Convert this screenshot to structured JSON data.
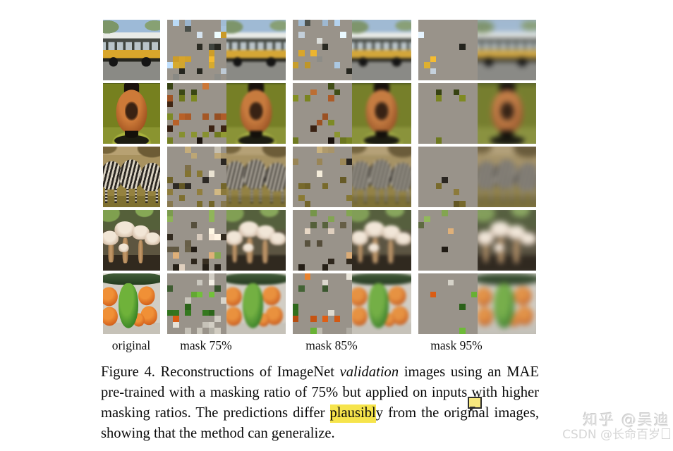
{
  "figure": {
    "columns": [
      {
        "label": "original",
        "mask_pct": 0
      },
      {
        "label": "mask 75%",
        "mask_pct": 75
      },
      {
        "label": "mask 85%",
        "mask_pct": 85
      },
      {
        "label": "mask 95%",
        "mask_pct": 95
      }
    ],
    "rows": [
      {
        "subject": "school-bus",
        "palette": [
          "#a8c4de",
          "#cfdce8",
          "#e9ebe7",
          "#474b45",
          "#d9a62b",
          "#caa02c",
          "#26261f",
          "#8a8a85"
        ]
      },
      {
        "subject": "vase",
        "palette": [
          "#3c4814",
          "#76801f",
          "#1a120c",
          "#c07034",
          "#a05424",
          "#3a2212",
          "#8a9430",
          "#6d7820"
        ]
      },
      {
        "subject": "zebras",
        "palette": [
          "#b7a172",
          "#a8925f",
          "#8a7a50",
          "#d9d2c2",
          "#2b2722",
          "#95823f",
          "#7f7030",
          "#6d6028"
        ]
      },
      {
        "subject": "mushrooms",
        "palette": [
          "#7fa04f",
          "#55603a",
          "#e8d8c6",
          "#f0e2d2",
          "#5d5540",
          "#c49a6a",
          "#31291e",
          "#241e16"
        ]
      },
      {
        "subject": "vegetables",
        "palette": [
          "#dcd8ce",
          "#3d5a30",
          "#63a832",
          "#ef8630",
          "#2f6b1c",
          "#c85512",
          "#d0ccc2",
          "#c2beb4"
        ]
      }
    ],
    "mask_tile_color": "#99938a",
    "visible_patch_counts": {
      "75": 25,
      "85": 15,
      "95": 5
    }
  },
  "caption": {
    "segments": [
      {
        "text": "Figure 4.  Reconstructions of ImageNet ",
        "style": "normal"
      },
      {
        "text": "validation",
        "style": "italic"
      },
      {
        "text": " images using an MAE pre-trained with a masking ratio of 75% but applied on inputs with higher masking ratios. The predictions differ ",
        "style": "normal"
      },
      {
        "text": "plausibl",
        "style": "highlight"
      },
      {
        "text": "y from the original images, showing that the method can generalize.",
        "style": "normal"
      }
    ],
    "highlight_color": "#f6e44c"
  },
  "annotation": {
    "note_icon": "sticky-note",
    "note_icon_color": "#f7e87e"
  },
  "watermarks": {
    "zhihu": "知乎 @吴迪",
    "csdn": "CSDN @长命百岁"
  }
}
